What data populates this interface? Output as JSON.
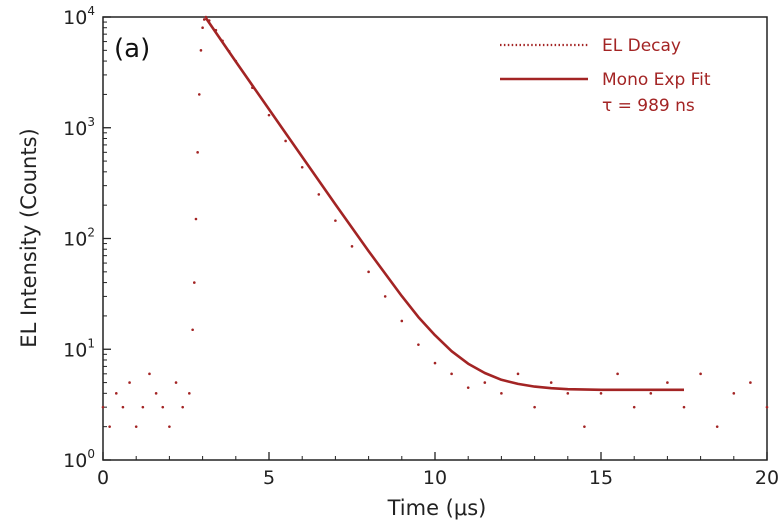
{
  "chart_data": {
    "type": "scatter",
    "panel_label": "(a)",
    "xlabel": "Time (μs)",
    "ylabel": "EL Intensity (Counts)",
    "x_scale": "linear",
    "y_scale": "log",
    "xlim": [
      0,
      20
    ],
    "ylim": [
      1,
      10000
    ],
    "x_ticks": [
      0,
      5,
      10,
      15,
      20
    ],
    "y_ticks": [
      {
        "base": "10",
        "exp": "0",
        "value": 1
      },
      {
        "base": "10",
        "exp": "1",
        "value": 10
      },
      {
        "base": "10",
        "exp": "2",
        "value": 100
      },
      {
        "base": "10",
        "exp": "3",
        "value": 1000
      },
      {
        "base": "10",
        "exp": "4",
        "value": 10000
      }
    ],
    "grid": false,
    "legend_position": "top-right",
    "series_color": "#a32424",
    "series": [
      {
        "name": "EL Decay",
        "style": "dotted",
        "x": [
          0.0,
          0.2,
          0.4,
          0.6,
          0.8,
          1.0,
          1.2,
          1.4,
          1.6,
          1.8,
          2.0,
          2.2,
          2.4,
          2.6,
          2.7,
          2.75,
          2.8,
          2.85,
          2.9,
          2.95,
          3.0,
          3.05,
          3.1,
          3.2,
          3.4,
          3.6,
          3.8,
          4.0,
          4.5,
          5.0,
          5.5,
          6.0,
          6.5,
          7.0,
          7.5,
          8.0,
          8.5,
          9.0,
          9.5,
          10.0,
          10.5,
          11.0,
          11.5,
          12.0,
          12.5,
          13.0,
          13.5,
          14.0,
          14.5,
          15.0,
          15.5,
          16.0,
          16.5,
          17.0,
          17.5,
          18.0,
          18.5,
          19.0,
          19.5,
          20.0
        ],
        "y": [
          3,
          2,
          4,
          3,
          5,
          2,
          3,
          6,
          4,
          3,
          2,
          5,
          3,
          4,
          15,
          40,
          150,
          600,
          2000,
          5000,
          8000,
          9500,
          10000,
          9300,
          7600,
          6100,
          4900,
          4000,
          2300,
          1300,
          760,
          440,
          250,
          145,
          85,
          50,
          30,
          18,
          11,
          7.5,
          6,
          4.5,
          5,
          4,
          6,
          3,
          5,
          4,
          2,
          4,
          6,
          3,
          4,
          5,
          3,
          6,
          2,
          4,
          5,
          3
        ]
      },
      {
        "name": "Mono Exp Fit",
        "style": "solid",
        "annotation": "τ = 989 ns",
        "x": [
          3.1,
          4,
          5,
          6,
          7,
          8,
          9,
          9.5,
          10,
          10.5,
          11,
          11.5,
          12,
          12.5,
          13,
          13.5,
          14,
          15,
          16,
          17.5
        ],
        "y": [
          9800,
          3954,
          1469,
          546,
          203,
          77,
          30.2,
          19.5,
          13.4,
          9.6,
          7.4,
          6.1,
          5.3,
          4.87,
          4.6,
          4.45,
          4.36,
          4.3,
          4.3,
          4.3
        ]
      }
    ]
  }
}
